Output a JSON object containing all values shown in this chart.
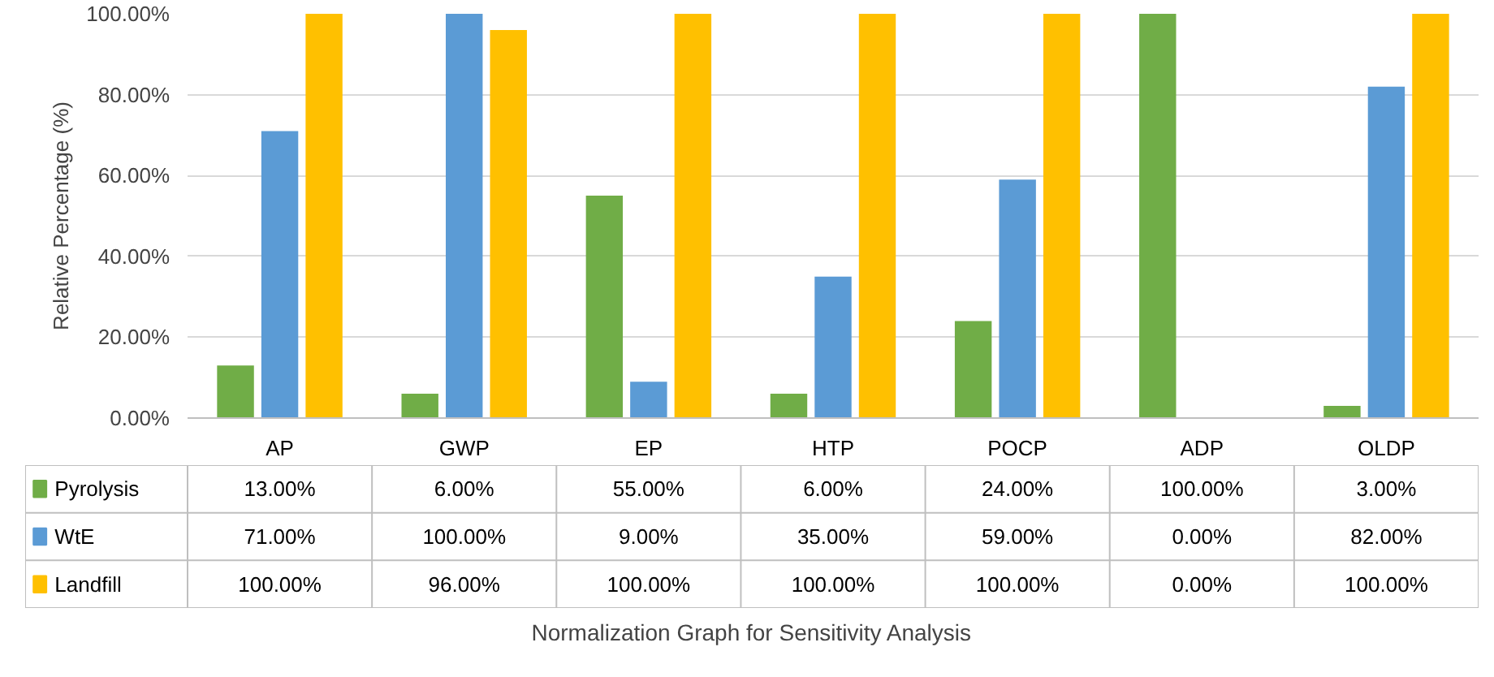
{
  "chart_data": {
    "type": "bar",
    "title": "Normalization Graph for Sensitivity Analysis",
    "ylabel": "Relative Percentage (%)",
    "categories": [
      "AP",
      "GWP",
      "EP",
      "HTP",
      "POCP",
      "ADP",
      "OLDP"
    ],
    "ylim": [
      0,
      100
    ],
    "yticks": [
      {
        "value": 0,
        "label": "0.00%"
      },
      {
        "value": 20,
        "label": "20.00%"
      },
      {
        "value": 40,
        "label": "40.00%"
      },
      {
        "value": 60,
        "label": "60.00%"
      },
      {
        "value": 80,
        "label": "80.00%"
      },
      {
        "value": 100,
        "label": "100.00%"
      }
    ],
    "grid": "y",
    "legend": "bottom",
    "series": [
      {
        "name": "Pyrolysis",
        "color": "#70ad47",
        "values": [
          13,
          6,
          55,
          6,
          24,
          100,
          3
        ],
        "value_labels": [
          "13.00%",
          "6.00%",
          "55.00%",
          "6.00%",
          "24.00%",
          "100.00%",
          "3.00%"
        ]
      },
      {
        "name": "WtE",
        "color": "#5b9bd5",
        "values": [
          71,
          100,
          9,
          35,
          59,
          0,
          82
        ],
        "value_labels": [
          "71.00%",
          "100.00%",
          "9.00%",
          "35.00%",
          "59.00%",
          "0.00%",
          "82.00%"
        ]
      },
      {
        "name": "Landfill",
        "color": "#ffc000",
        "values": [
          100,
          96,
          100,
          100,
          100,
          0,
          100
        ],
        "value_labels": [
          "100.00%",
          "96.00%",
          "100.00%",
          "100.00%",
          "100.00%",
          "0.00%",
          "100.00%"
        ]
      }
    ]
  }
}
